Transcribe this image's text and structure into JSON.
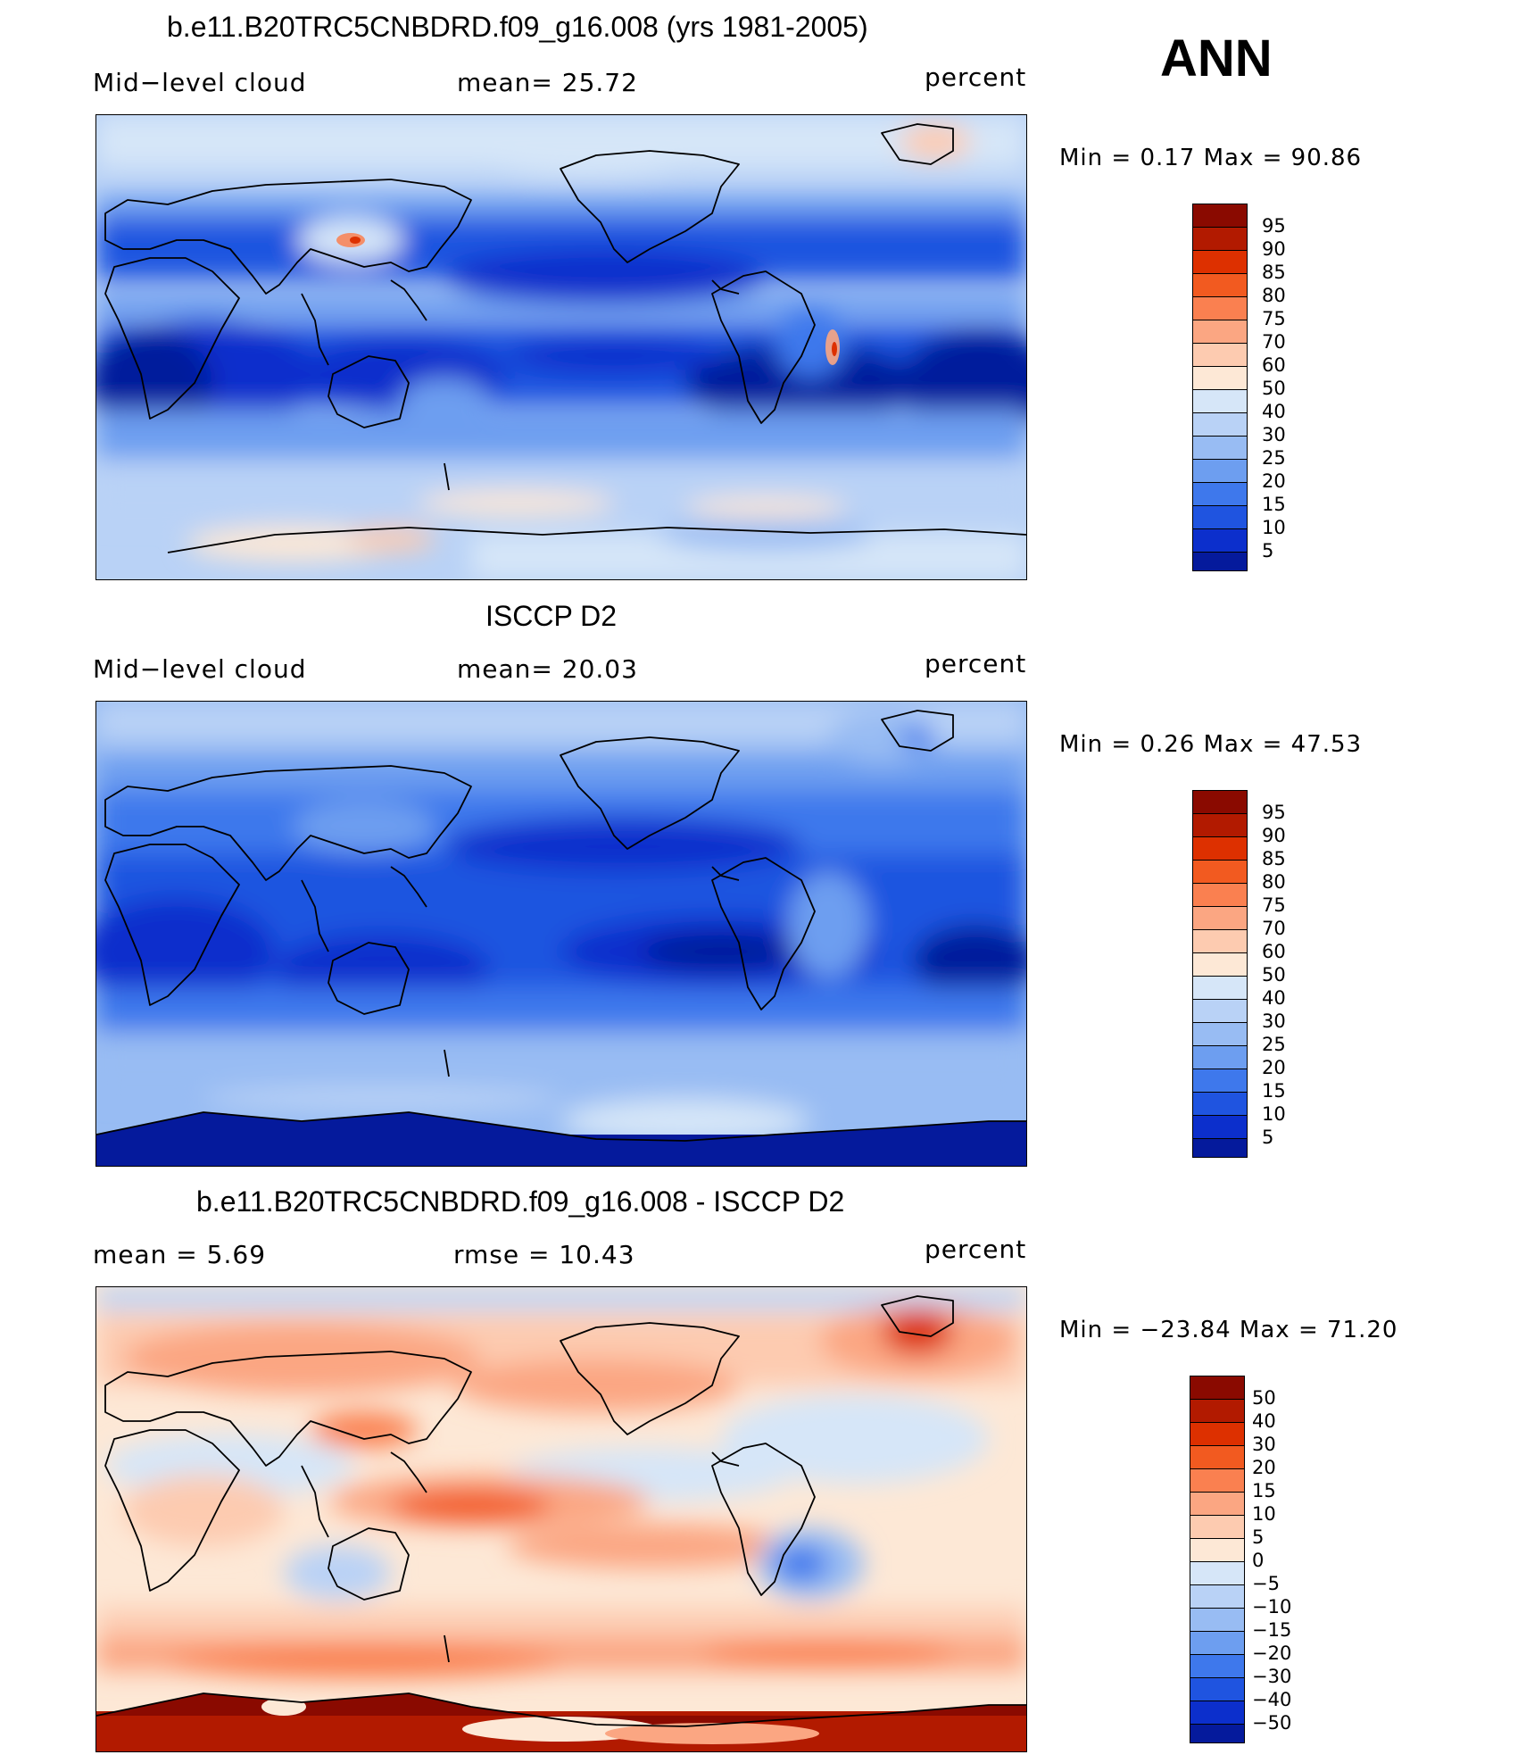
{
  "season": "ANN",
  "panels": [
    {
      "title": "b.e11.B20TRC5CNBDRD.f09_g16.008 (yrs 1981-2005)",
      "left_label": "Mid−level cloud",
      "center_label": "mean=   25.72",
      "right_label": "percent",
      "minmax": "Min =    0.17 Max =   90.86",
      "colorbar_labels": [
        "95",
        "90",
        "85",
        "80",
        "75",
        "70",
        "60",
        "50",
        "40",
        "30",
        "25",
        "20",
        "15",
        "10",
        "5"
      ],
      "colorbar_colors": [
        "#8a0a00",
        "#b21a00",
        "#dd3000",
        "#f25a20",
        "#fa8050",
        "#fba682",
        "#fdcbb0",
        "#fde8d6",
        "#d6e6f8",
        "#b9d2f6",
        "#98bcf3",
        "#6d9ef0",
        "#3e78ec",
        "#1f54e0",
        "#0c2fcc",
        "#051a9c"
      ]
    },
    {
      "title": "ISCCP D2",
      "left_label": "Mid−level cloud",
      "center_label": "mean=   20.03",
      "right_label": "percent",
      "minmax": "Min =    0.26 Max =   47.53",
      "colorbar_labels": [
        "95",
        "90",
        "85",
        "80",
        "75",
        "70",
        "60",
        "50",
        "40",
        "30",
        "25",
        "20",
        "15",
        "10",
        "5"
      ],
      "colorbar_colors": [
        "#8a0a00",
        "#b21a00",
        "#dd3000",
        "#f25a20",
        "#fa8050",
        "#fba682",
        "#fdcbb0",
        "#fde8d6",
        "#d6e6f8",
        "#b9d2f6",
        "#98bcf3",
        "#6d9ef0",
        "#3e78ec",
        "#1f54e0",
        "#0c2fcc",
        "#051a9c"
      ]
    },
    {
      "title": "b.e11.B20TRC5CNBDRD.f09_g16.008 - ISCCP D2",
      "left_label": "mean =     5.69",
      "center_label": "rmse =   10.43",
      "right_label": "percent",
      "minmax": "Min = −23.84 Max =   71.20",
      "colorbar_labels": [
        "50",
        "40",
        "30",
        "20",
        "15",
        "10",
        "5",
        "0",
        "−5",
        "−10",
        "−15",
        "−20",
        "−30",
        "−40",
        "−50"
      ],
      "colorbar_colors": [
        "#8a0a00",
        "#b21a00",
        "#dd3000",
        "#f25a20",
        "#fa8050",
        "#fba682",
        "#fdcbb0",
        "#fde8d6",
        "#d6e6f8",
        "#b9d2f6",
        "#98bcf3",
        "#6d9ef0",
        "#3e78ec",
        "#1f54e0",
        "#0c2fcc",
        "#051a9c"
      ]
    }
  ]
}
